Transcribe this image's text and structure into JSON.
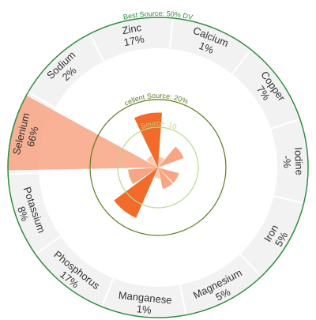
{
  "chart_data": {
    "type": "radial-bar",
    "unit": "%",
    "nutrients": [
      {
        "name": "Calcium",
        "value": 1,
        "label": "1%"
      },
      {
        "name": "Copper",
        "value": 7,
        "label": "7%"
      },
      {
        "name": "Iodine",
        "value": null,
        "label": "-%"
      },
      {
        "name": "Iron",
        "value": 5,
        "label": "5%"
      },
      {
        "name": "Magnesium",
        "value": 5,
        "label": "5%"
      },
      {
        "name": "Manganese",
        "value": 1,
        "label": "1%"
      },
      {
        "name": "Phosphorus",
        "value": 17,
        "label": "17%"
      },
      {
        "name": "Potassium",
        "value": 8,
        "label": "8%"
      },
      {
        "name": "Selenium",
        "value": 66,
        "label": "66%"
      },
      {
        "name": "Sodium",
        "value": 2,
        "label": "2%"
      },
      {
        "name": "Zinc",
        "value": 17,
        "label": "17%"
      }
    ],
    "thresholds": [
      {
        "label": "Good Source: 10% DV",
        "value": 10,
        "color": "#b9d98a"
      },
      {
        "label": "Excellent Source: 20% DV",
        "value": 20,
        "color": "#5a7d1e"
      },
      {
        "label": "Best Source: 50% DV",
        "value": 50,
        "color": "#2e8b3e"
      }
    ],
    "colors": {
      "bar_high": "#f26b2a",
      "bar_mid": "#f8a583",
      "bar_low": "#fcc9ae",
      "segment_fill": "#f2f2f2",
      "segment_stroke": "#ffffff"
    }
  }
}
